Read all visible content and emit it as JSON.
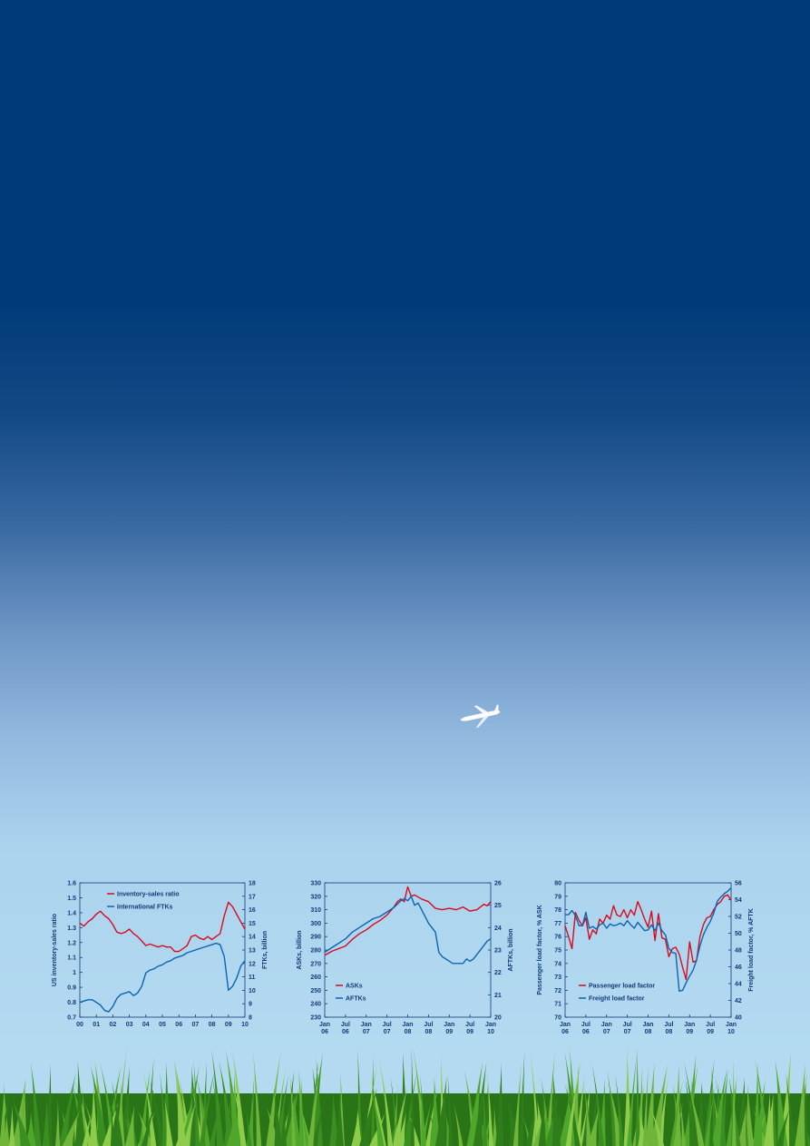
{
  "theme": {
    "blue": "#0d64b0",
    "red": "#d90a1e",
    "axis": "#123c78",
    "sky_top": "#003a78",
    "sky_bottom": "#b3daf0",
    "grass": "#3f9a22"
  },
  "decorations": {
    "airplane_icon": "airplane-icon",
    "grass_icon": "grass-icon"
  },
  "chart_data": [
    {
      "type": "line",
      "ylabel_left": "US inventory-sales ratio",
      "ylabel_right": "FTKs, billion",
      "ylim_left": [
        0.7,
        1.6
      ],
      "ylim_right": [
        8,
        18
      ],
      "yticks_left": [
        "0.7",
        "0.8",
        "0.9",
        "1",
        "1.1",
        "1.2",
        "1.3",
        "1.4",
        "1.5",
        "1.6"
      ],
      "yticks_right": [
        "8",
        "9",
        "10",
        "11",
        "12",
        "13",
        "14",
        "15",
        "16",
        "17",
        "18"
      ],
      "xlim": [
        2000,
        2010
      ],
      "xticks": [
        {
          "x": 2000,
          "l1": "00"
        },
        {
          "x": 2001,
          "l1": "01"
        },
        {
          "x": 2002,
          "l1": "02"
        },
        {
          "x": 2003,
          "l1": "03"
        },
        {
          "x": 2004,
          "l1": "04"
        },
        {
          "x": 2005,
          "l1": "05"
        },
        {
          "x": 2006,
          "l1": "06"
        },
        {
          "x": 2007,
          "l1": "07"
        },
        {
          "x": 2008,
          "l1": "08"
        },
        {
          "x": 2009,
          "l1": "09"
        },
        {
          "x": 2010,
          "l1": "10"
        }
      ],
      "legend": "top",
      "series": [
        {
          "name": "Inventory-sales ratio",
          "axis": "left",
          "color": "#d90a1e",
          "x": [
            2000.0,
            2000.25,
            2000.5,
            2000.75,
            2001.0,
            2001.25,
            2001.5,
            2001.75,
            2002.0,
            2002.25,
            2002.5,
            2002.75,
            2003.0,
            2003.25,
            2003.5,
            2003.75,
            2004.0,
            2004.25,
            2004.5,
            2004.75,
            2005.0,
            2005.25,
            2005.5,
            2005.75,
            2006.0,
            2006.25,
            2006.5,
            2006.75,
            2007.0,
            2007.25,
            2007.5,
            2007.75,
            2008.0,
            2008.25,
            2008.5,
            2008.75,
            2009.0,
            2009.25,
            2009.5,
            2009.75,
            2010.0
          ],
          "y": [
            1.33,
            1.31,
            1.34,
            1.36,
            1.39,
            1.41,
            1.38,
            1.36,
            1.32,
            1.27,
            1.26,
            1.27,
            1.29,
            1.26,
            1.24,
            1.21,
            1.18,
            1.19,
            1.18,
            1.17,
            1.18,
            1.17,
            1.17,
            1.14,
            1.14,
            1.16,
            1.18,
            1.24,
            1.25,
            1.23,
            1.22,
            1.24,
            1.22,
            1.24,
            1.26,
            1.38,
            1.47,
            1.44,
            1.39,
            1.34,
            1.29
          ]
        },
        {
          "name": "International FTKs",
          "axis": "right",
          "color": "#0d64b0",
          "x": [
            2000.0,
            2000.25,
            2000.5,
            2000.75,
            2001.0,
            2001.25,
            2001.5,
            2001.75,
            2002.0,
            2002.25,
            2002.5,
            2002.75,
            2003.0,
            2003.25,
            2003.5,
            2003.75,
            2004.0,
            2004.25,
            2004.5,
            2004.75,
            2005.0,
            2005.25,
            2005.5,
            2005.75,
            2006.0,
            2006.25,
            2006.5,
            2006.75,
            2007.0,
            2007.25,
            2007.5,
            2007.75,
            2008.0,
            2008.25,
            2008.5,
            2008.75,
            2009.0,
            2009.25,
            2009.5,
            2009.75,
            2010.0
          ],
          "y": [
            9.1,
            9.2,
            9.3,
            9.3,
            9.1,
            8.9,
            8.5,
            8.4,
            8.8,
            9.4,
            9.7,
            9.8,
            9.9,
            9.6,
            9.8,
            10.3,
            11.3,
            11.5,
            11.6,
            11.8,
            11.9,
            12.1,
            12.2,
            12.4,
            12.5,
            12.6,
            12.8,
            12.9,
            13.0,
            13.1,
            13.2,
            13.3,
            13.4,
            13.5,
            13.4,
            12.5,
            10.0,
            10.3,
            10.9,
            11.8,
            12.2
          ]
        }
      ]
    },
    {
      "type": "line",
      "ylabel_left": "ASKs, billion",
      "ylabel_right": "AFTKs, billion",
      "ylim_left": [
        230,
        330
      ],
      "ylim_right": [
        20,
        26
      ],
      "yticks_left": [
        "230",
        "240",
        "250",
        "260",
        "270",
        "280",
        "290",
        "300",
        "310",
        "320",
        "330"
      ],
      "yticks_right": [
        "20",
        "21",
        "22",
        "23",
        "24",
        "25",
        "26"
      ],
      "xlim": [
        0,
        48
      ],
      "xticks": [
        {
          "x": 0,
          "l1": "Jan",
          "l2": "06"
        },
        {
          "x": 6,
          "l1": "Jul",
          "l2": "06"
        },
        {
          "x": 12,
          "l1": "Jan",
          "l2": "07"
        },
        {
          "x": 18,
          "l1": "Jul",
          "l2": "07"
        },
        {
          "x": 24,
          "l1": "Jan",
          "l2": "08"
        },
        {
          "x": 30,
          "l1": "Jul",
          "l2": "08"
        },
        {
          "x": 36,
          "l1": "Jan",
          "l2": "09"
        },
        {
          "x": 42,
          "l1": "Jul",
          "l2": "09"
        },
        {
          "x": 48,
          "l1": "Jan",
          "l2": "10"
        }
      ],
      "legend": "bottom-left",
      "series": [
        {
          "name": "ASKs",
          "axis": "left",
          "color": "#d90a1e",
          "x": [
            0,
            2,
            4,
            6,
            8,
            10,
            12,
            14,
            16,
            18,
            20,
            21,
            22,
            23,
            24,
            25,
            26,
            28,
            30,
            32,
            34,
            36,
            38,
            40,
            42,
            44,
            46,
            47,
            48
          ],
          "y": [
            276,
            279,
            281,
            283,
            288,
            292,
            295,
            299,
            302,
            306,
            312,
            316,
            318,
            316,
            327,
            320,
            321,
            318,
            316,
            311,
            310,
            311,
            310,
            312,
            309,
            310,
            314,
            313,
            316
          ]
        },
        {
          "name": "AFTKs",
          "axis": "right",
          "color": "#0d64b0",
          "x": [
            0,
            2,
            4,
            6,
            8,
            10,
            12,
            14,
            16,
            18,
            20,
            22,
            23,
            24,
            25,
            26,
            27,
            28,
            30,
            32,
            33,
            34,
            36,
            37,
            38,
            40,
            41,
            42,
            43,
            44,
            46,
            47,
            48
          ],
          "y": [
            22.9,
            23.1,
            23.3,
            23.5,
            23.8,
            24.0,
            24.2,
            24.4,
            24.5,
            24.7,
            24.9,
            25.2,
            25.3,
            25.2,
            25.4,
            25.0,
            25.1,
            24.8,
            24.2,
            23.8,
            22.9,
            22.7,
            22.5,
            22.4,
            22.4,
            22.4,
            22.6,
            22.5,
            22.6,
            22.8,
            23.2,
            23.4,
            23.5
          ]
        }
      ]
    },
    {
      "type": "line",
      "ylabel_left": "Passenger load factor, % ASK",
      "ylabel_right": "Freight load factor, % AFTK",
      "ylim_left": [
        70,
        80
      ],
      "ylim_right": [
        40,
        56
      ],
      "yticks_left": [
        "70",
        "71",
        "72",
        "73",
        "74",
        "75",
        "76",
        "77",
        "78",
        "79",
        "80"
      ],
      "yticks_right": [
        "40",
        "42",
        "44",
        "46",
        "48",
        "50",
        "52",
        "54",
        "56"
      ],
      "xlim": [
        0,
        48
      ],
      "xticks": [
        {
          "x": 0,
          "l1": "Jan",
          "l2": "06"
        },
        {
          "x": 6,
          "l1": "Jul",
          "l2": "06"
        },
        {
          "x": 12,
          "l1": "Jan",
          "l2": "07"
        },
        {
          "x": 18,
          "l1": "Jul",
          "l2": "07"
        },
        {
          "x": 24,
          "l1": "Jan",
          "l2": "08"
        },
        {
          "x": 30,
          "l1": "Jul",
          "l2": "08"
        },
        {
          "x": 36,
          "l1": "Jan",
          "l2": "09"
        },
        {
          "x": 42,
          "l1": "Jul",
          "l2": "09"
        },
        {
          "x": 48,
          "l1": "Jan",
          "l2": "10"
        }
      ],
      "legend": "bottom-left",
      "series": [
        {
          "name": "Passenger load factor",
          "axis": "left",
          "color": "#d90a1e",
          "x": [
            0,
            1,
            2,
            3,
            4,
            5,
            6,
            7,
            8,
            9,
            10,
            11,
            12,
            13,
            14,
            15,
            16,
            17,
            18,
            19,
            20,
            21,
            22,
            23,
            24,
            25,
            26,
            27,
            28,
            29,
            30,
            31,
            32,
            33,
            34,
            35,
            36,
            37,
            38,
            39,
            40,
            41,
            42,
            43,
            44,
            45,
            46,
            47,
            48
          ],
          "y": [
            76.8,
            76.0,
            75.1,
            77.8,
            77.2,
            76.8,
            77.4,
            75.8,
            76.5,
            76.2,
            77.3,
            77.0,
            77.6,
            77.3,
            78.3,
            77.6,
            77.5,
            78.0,
            77.4,
            78.0,
            77.6,
            78.6,
            78.0,
            77.3,
            76.7,
            77.9,
            75.7,
            77.7,
            75.9,
            75.8,
            74.5,
            75.1,
            75.2,
            74.7,
            73.7,
            72.8,
            75.6,
            74.1,
            74.2,
            76.0,
            76.9,
            77.4,
            77.5,
            78.0,
            78.4,
            78.6,
            79.0,
            79.1,
            78.7
          ]
        },
        {
          "name": "Freight load factor",
          "axis": "right",
          "color": "#0d64b0",
          "x": [
            0,
            1,
            2,
            3,
            4,
            5,
            6,
            7,
            8,
            9,
            10,
            11,
            12,
            13,
            14,
            15,
            16,
            17,
            18,
            19,
            20,
            21,
            22,
            23,
            24,
            25,
            26,
            27,
            28,
            29,
            30,
            31,
            32,
            33,
            34,
            35,
            36,
            37,
            38,
            39,
            40,
            41,
            42,
            43,
            44,
            45,
            46,
            47,
            48
          ],
          "y": [
            52.2,
            52.2,
            52.7,
            52.1,
            50.9,
            50.9,
            52.5,
            50.6,
            50.8,
            50.5,
            51.0,
            51.2,
            50.6,
            51.1,
            50.9,
            51.0,
            51.2,
            50.9,
            51.5,
            51.0,
            50.6,
            51.3,
            50.8,
            50.3,
            50.4,
            51.0,
            50.3,
            51.2,
            50.3,
            49.8,
            48.2,
            47.7,
            47.6,
            43.1,
            43.2,
            44.1,
            44.9,
            45.6,
            46.8,
            48.5,
            49.8,
            50.7,
            51.4,
            52.4,
            53.8,
            54.3,
            54.7,
            55.0,
            55.4
          ]
        }
      ]
    }
  ]
}
